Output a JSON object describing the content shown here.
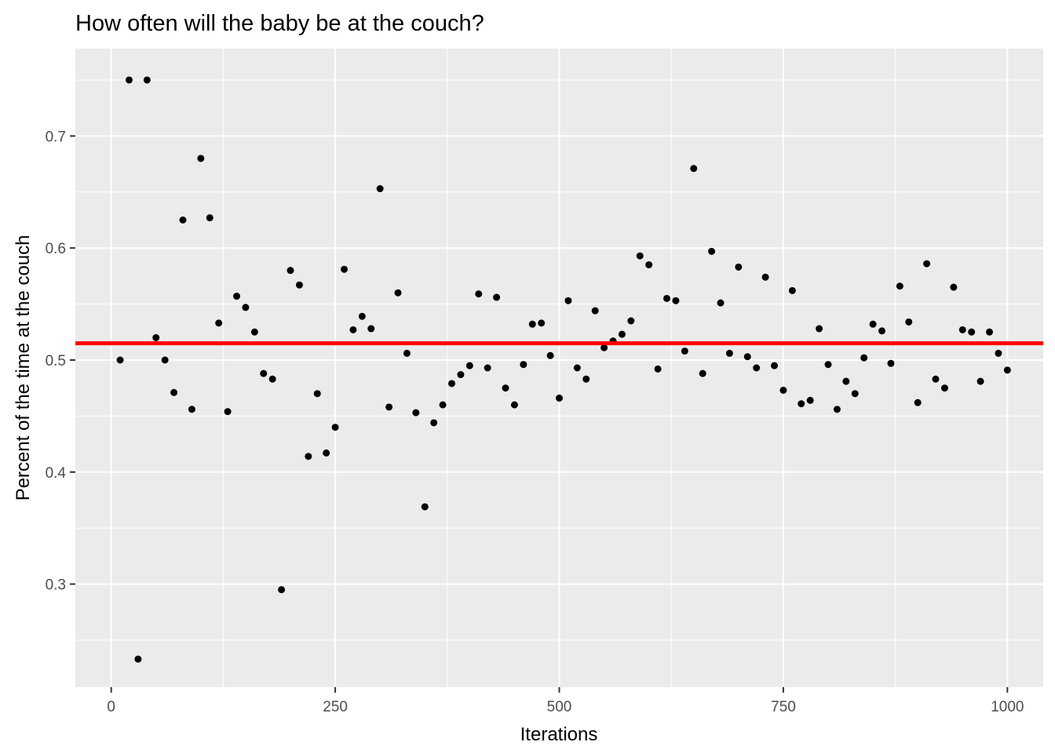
{
  "chart_data": {
    "type": "scatter",
    "title": "How often will the baby be at the couch?",
    "xlabel": "Iterations",
    "ylabel": "Percent of the time at the couch",
    "xlim": [
      -40,
      1040
    ],
    "ylim": [
      0.208,
      0.778
    ],
    "x_ticks": [
      0,
      250,
      500,
      750,
      1000
    ],
    "x_tick_labels": [
      "0",
      "250",
      "500",
      "750",
      "1000"
    ],
    "y_ticks": [
      0.3,
      0.4,
      0.5,
      0.6,
      0.7
    ],
    "y_tick_labels": [
      "0.3",
      "0.4",
      "0.5",
      "0.6",
      "0.7"
    ],
    "grid": true,
    "point_color": "#000000",
    "background_color": "#ebebeb",
    "grid_color": "#ffffff",
    "reference_line": {
      "y": 0.515,
      "color": "#ff0000"
    },
    "x": [
      10,
      20,
      30,
      40,
      50,
      60,
      70,
      80,
      90,
      100,
      110,
      120,
      130,
      140,
      150,
      160,
      170,
      180,
      190,
      200,
      210,
      220,
      230,
      240,
      250,
      260,
      270,
      280,
      290,
      300,
      310,
      320,
      330,
      340,
      350,
      360,
      370,
      380,
      390,
      400,
      410,
      420,
      430,
      440,
      450,
      460,
      470,
      480,
      490,
      500,
      510,
      520,
      530,
      540,
      550,
      560,
      570,
      580,
      590,
      600,
      610,
      620,
      630,
      640,
      650,
      660,
      670,
      680,
      690,
      700,
      710,
      720,
      730,
      740,
      750,
      760,
      770,
      780,
      790,
      800,
      810,
      820,
      830,
      840,
      850,
      860,
      870,
      880,
      890,
      900,
      910,
      920,
      930,
      940,
      950,
      960,
      970,
      980,
      990,
      1000
    ],
    "y": [
      0.5,
      0.75,
      0.233,
      0.75,
      0.52,
      0.5,
      0.471,
      0.625,
      0.456,
      0.68,
      0.627,
      0.533,
      0.454,
      0.557,
      0.547,
      0.525,
      0.488,
      0.483,
      0.295,
      0.58,
      0.567,
      0.414,
      0.47,
      0.417,
      0.44,
      0.581,
      0.527,
      0.539,
      0.528,
      0.653,
      0.458,
      0.56,
      0.506,
      0.453,
      0.369,
      0.444,
      0.46,
      0.479,
      0.487,
      0.495,
      0.559,
      0.493,
      0.556,
      0.475,
      0.46,
      0.496,
      0.532,
      0.533,
      0.504,
      0.466,
      0.553,
      0.493,
      0.483,
      0.544,
      0.511,
      0.517,
      0.523,
      0.535,
      0.593,
      0.585,
      0.492,
      0.555,
      0.553,
      0.508,
      0.671,
      0.488,
      0.597,
      0.551,
      0.506,
      0.583,
      0.503,
      0.493,
      0.574,
      0.495,
      0.473,
      0.562,
      0.461,
      0.464,
      0.528,
      0.496,
      0.456,
      0.481,
      0.47,
      0.502,
      0.532,
      0.526,
      0.497,
      0.566,
      0.534,
      0.462,
      0.586,
      0.483,
      0.475,
      0.565,
      0.527,
      0.525,
      0.481,
      0.525,
      0.506,
      0.491
    ]
  }
}
